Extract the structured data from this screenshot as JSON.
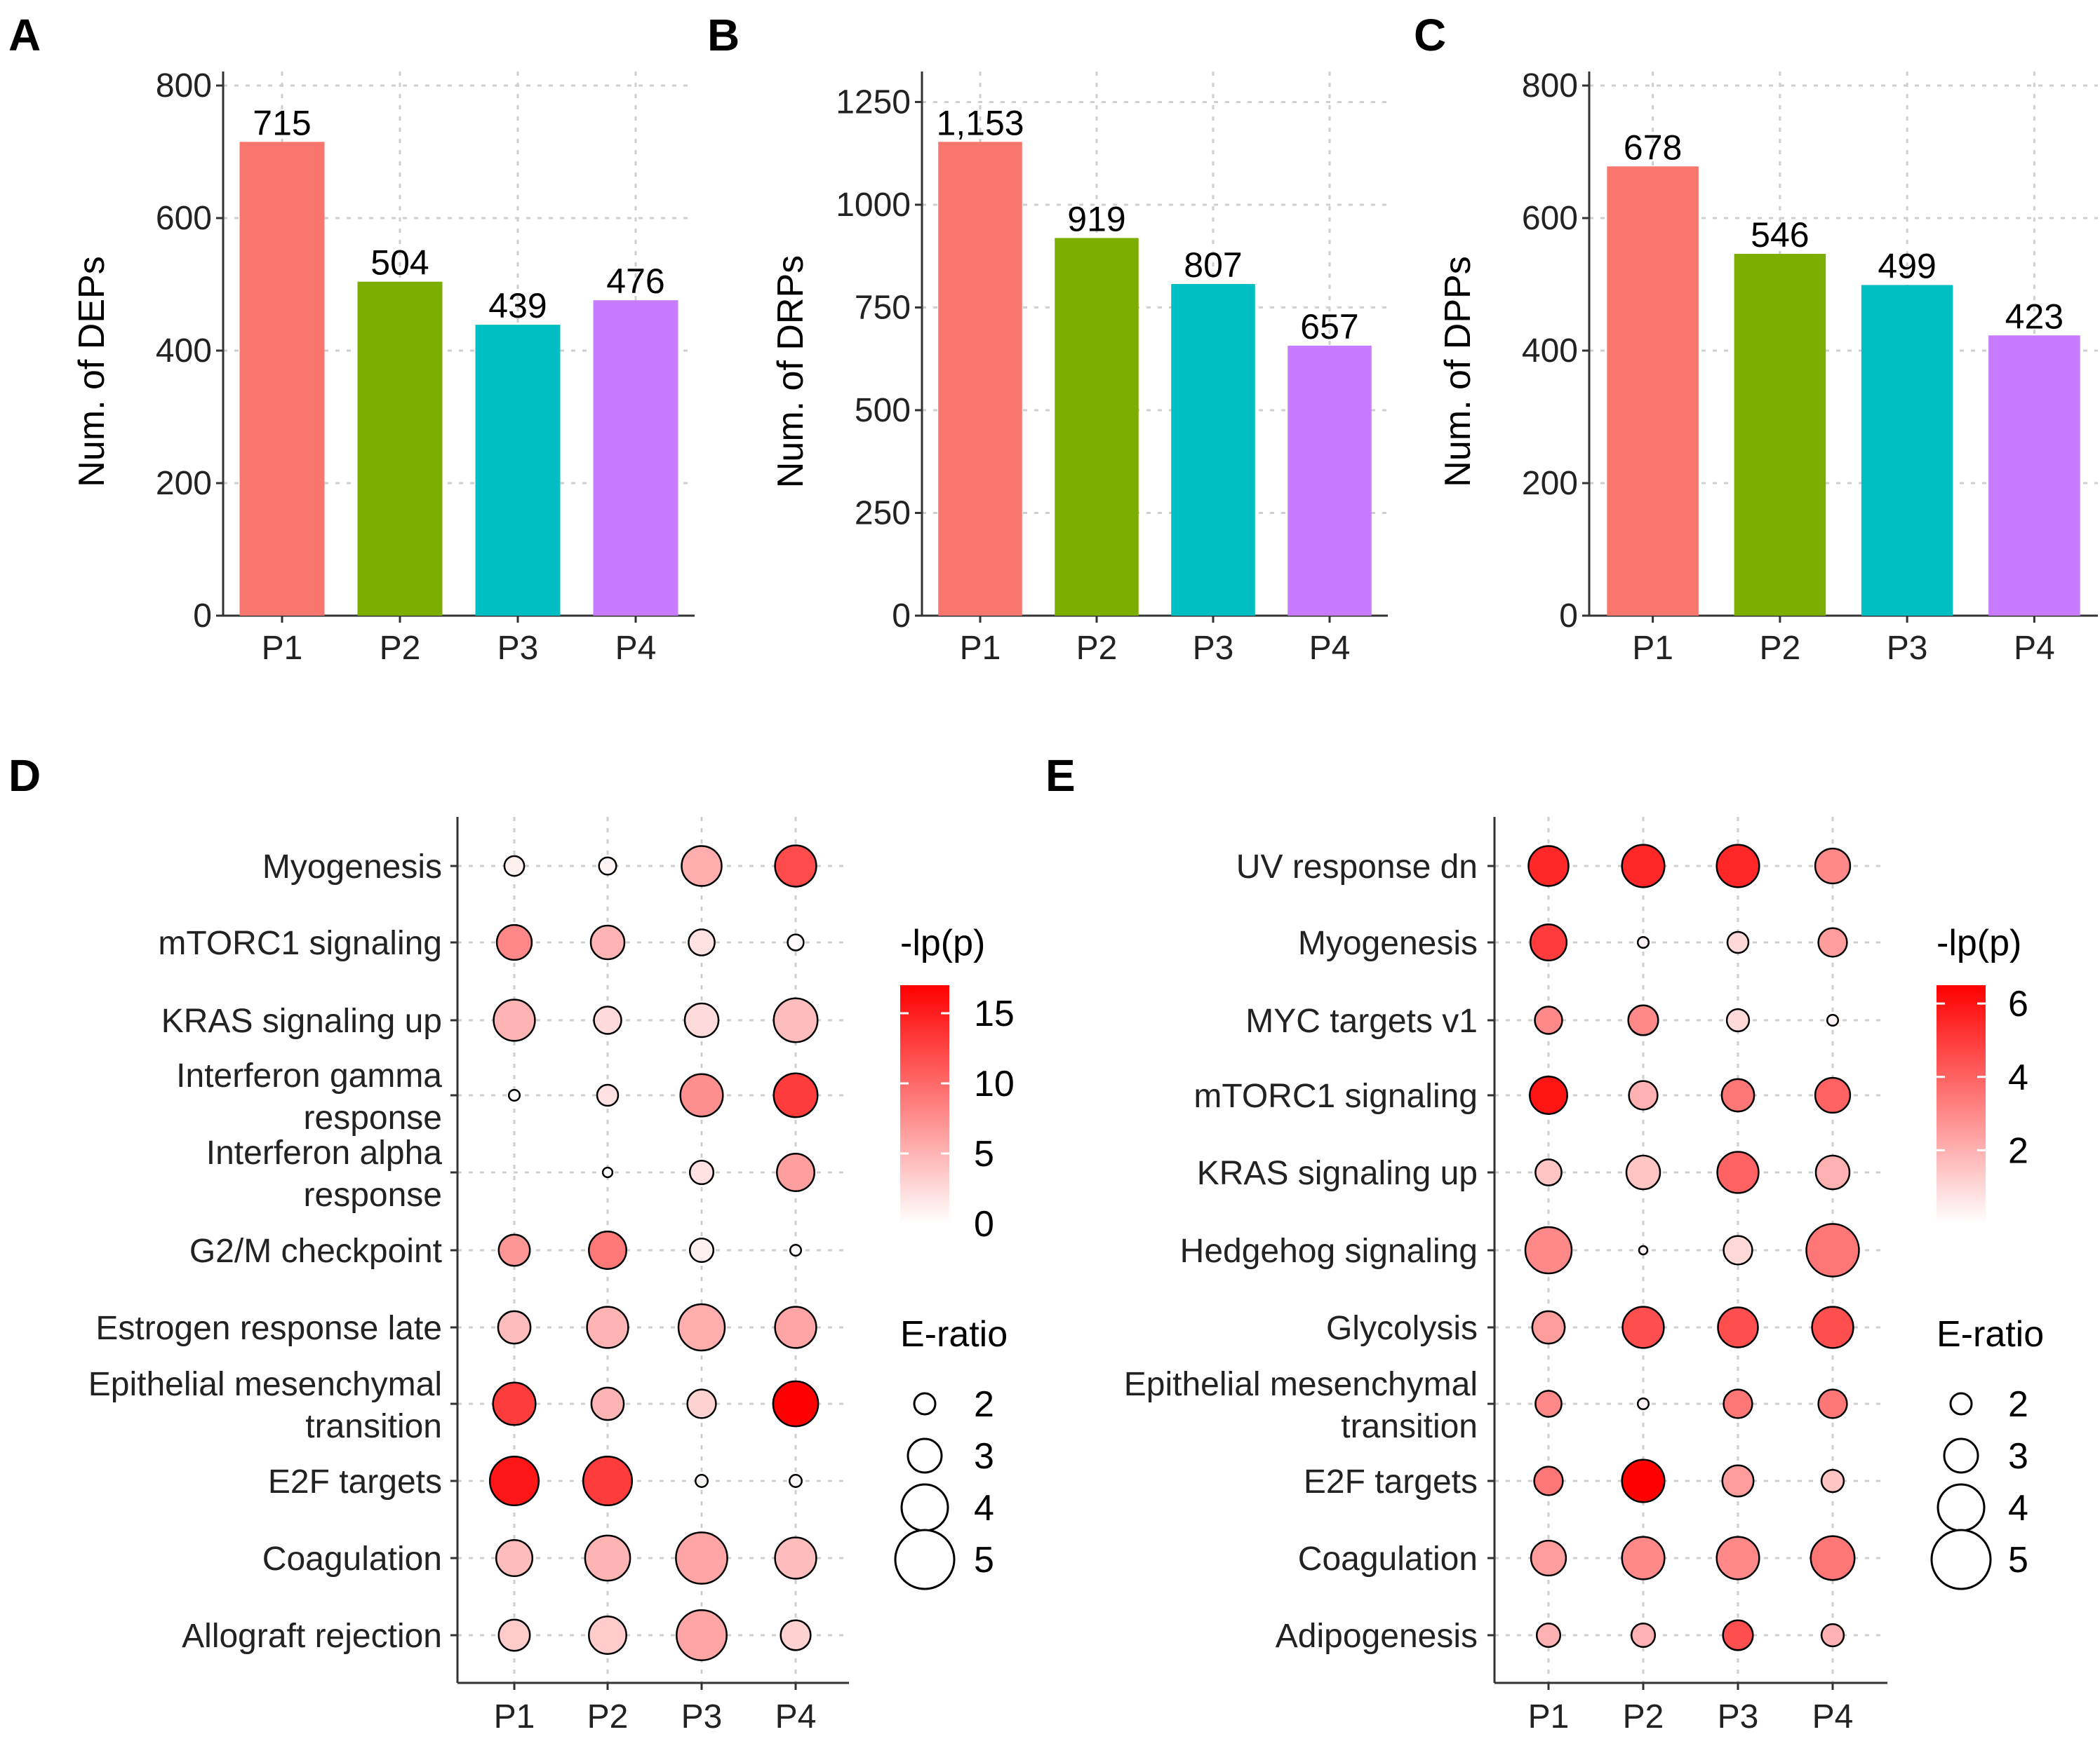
{
  "chart_data": [
    {
      "panel": "A",
      "type": "bar",
      "categories": [
        "P1",
        "P2",
        "P3",
        "P4"
      ],
      "values": [
        715,
        504,
        439,
        476
      ],
      "value_labels": [
        "715",
        "504",
        "439",
        "476"
      ],
      "colors": [
        "#F8766D",
        "#7CAE00",
        "#00BFC4",
        "#C77CFF"
      ],
      "ylabel": "Num. of DEPs",
      "ylim": [
        0,
        800
      ],
      "yticks": [
        0,
        200,
        400,
        600,
        800
      ],
      "ytick_labels": [
        "0",
        "200",
        "400",
        "600",
        "800"
      ]
    },
    {
      "panel": "B",
      "type": "bar",
      "categories": [
        "P1",
        "P2",
        "P3",
        "P4"
      ],
      "values": [
        1153,
        919,
        807,
        657
      ],
      "value_labels": [
        "1,153",
        "919",
        "807",
        "657"
      ],
      "colors": [
        "#F8766D",
        "#7CAE00",
        "#00BFC4",
        "#C77CFF"
      ],
      "ylabel": "Num. of DRPs",
      "ylim": [
        0,
        1290
      ],
      "yticks": [
        0,
        250,
        500,
        750,
        1000,
        1250
      ],
      "ytick_labels": [
        "0",
        "250",
        "500",
        "750",
        "1000",
        "1250"
      ]
    },
    {
      "panel": "C",
      "type": "bar",
      "categories": [
        "P1",
        "P2",
        "P3",
        "P4"
      ],
      "values": [
        678,
        546,
        499,
        423
      ],
      "value_labels": [
        "678",
        "546",
        "499",
        "423"
      ],
      "colors": [
        "#F8766D",
        "#7CAE00",
        "#00BFC4",
        "#C77CFF"
      ],
      "ylabel": "Num. of DPPs",
      "ylim": [
        0,
        800
      ],
      "yticks": [
        0,
        200,
        400,
        600,
        800
      ],
      "ytick_labels": [
        "0",
        "200",
        "400",
        "600",
        "800"
      ]
    },
    {
      "panel": "D",
      "type": "scatter",
      "subtype": "dot-plot",
      "categories": [
        "P1",
        "P2",
        "P3",
        "P4"
      ],
      "pathways": [
        "Myogenesis",
        "mTORC1 signaling",
        "KRAS signaling up",
        "Interferon gamma response",
        "Interferon alpha response",
        "G2/M checkpoint",
        "Estrogen response late",
        "Epithelial mesenchymal transition",
        "E2F targets",
        "Coagulation",
        "Allograft rejection"
      ],
      "pathway_label_lines": [
        [
          "Myogenesis"
        ],
        [
          "mTORC1 signaling"
        ],
        [
          "KRAS signaling up"
        ],
        [
          "Interferon gamma",
          "response"
        ],
        [
          "Interferon alpha",
          "response"
        ],
        [
          "G2/M checkpoint"
        ],
        [
          "Estrogen response late"
        ],
        [
          "Epithelial mesenchymal",
          "transition"
        ],
        [
          "E2F targets"
        ],
        [
          "Coagulation"
        ],
        [
          "Allograft rejection"
        ]
      ],
      "e_ratio": [
        [
          1.9,
          1.7,
          3.5,
          3.6
        ],
        [
          3.1,
          3.0,
          2.4,
          1.6
        ],
        [
          3.6,
          2.5,
          3.0,
          3.8
        ],
        [
          1.2,
          2.0,
          3.7,
          3.8
        ],
        [
          null,
          1.1,
          2.2,
          3.3
        ],
        [
          2.8,
          3.3,
          2.2,
          1.2
        ],
        [
          2.9,
          3.6,
          4.0,
          3.6
        ],
        [
          3.7,
          2.9,
          2.6,
          3.9
        ],
        [
          4.2,
          4.2,
          1.3,
          1.3
        ],
        [
          3.2,
          3.9,
          4.4,
          3.6
        ],
        [
          2.8,
          3.3,
          4.3,
          2.7
        ]
      ],
      "neg_log_p": [
        [
          1.0,
          0.8,
          5.5,
          12.0
        ],
        [
          8.0,
          5.0,
          2.0,
          0.5
        ],
        [
          5.0,
          2.5,
          2.5,
          4.5
        ],
        [
          0.3,
          2.0,
          7.5,
          13.0
        ],
        [
          null,
          0.3,
          2.0,
          6.5
        ],
        [
          7.0,
          9.0,
          1.0,
          0.3
        ],
        [
          4.5,
          5.0,
          5.5,
          6.0
        ],
        [
          13.0,
          5.0,
          3.0,
          17.0
        ],
        [
          15.5,
          13.0,
          0.5,
          0.3
        ],
        [
          4.5,
          5.0,
          6.0,
          4.5
        ],
        [
          3.5,
          3.5,
          6.0,
          3.0
        ]
      ],
      "color_legend": {
        "title": "-lp(p)",
        "ticks": [
          0,
          5,
          10,
          15
        ],
        "tick_labels": [
          "0",
          "5",
          "10",
          "15"
        ],
        "range": [
          0,
          17
        ],
        "low_color": "#FFFFFF",
        "high_color": "#FF0000"
      },
      "size_legend": {
        "title": "E-ratio",
        "values": [
          2,
          3,
          4,
          5
        ],
        "labels": [
          "2",
          "3",
          "4",
          "5"
        ]
      }
    },
    {
      "panel": "E",
      "type": "scatter",
      "subtype": "dot-plot",
      "categories": [
        "P1",
        "P2",
        "P3",
        "P4"
      ],
      "pathways": [
        "UV response dn",
        "Myogenesis",
        "MYC targets v1",
        "mTORC1 signaling",
        "KRAS signaling up",
        "Hedgehog signaling",
        "Glycolysis",
        "Epithelial mesenchymal transition",
        "E2F targets",
        "Coagulation",
        "Adipogenesis"
      ],
      "pathway_label_lines": [
        [
          "UV response dn"
        ],
        [
          "Myogenesis"
        ],
        [
          "MYC targets v1"
        ],
        [
          "mTORC1 signaling"
        ],
        [
          "KRAS signaling up"
        ],
        [
          "Hedgehog signaling"
        ],
        [
          "Glycolysis"
        ],
        [
          "Epithelial mesenchymal",
          "transition"
        ],
        [
          "E2F targets"
        ],
        [
          "Coagulation"
        ],
        [
          "Adipogenesis"
        ]
      ],
      "e_ratio": [
        [
          3.5,
          3.7,
          3.7,
          3.1
        ],
        [
          3.2,
          1.2,
          2.0,
          2.6
        ],
        [
          2.5,
          2.7,
          2.1,
          1.2
        ],
        [
          3.3,
          2.6,
          2.9,
          3.1
        ],
        [
          2.4,
          3.0,
          3.6,
          3.0
        ],
        [
          4.0,
          1.0,
          2.6,
          4.5
        ],
        [
          2.9,
          3.6,
          3.5,
          3.6
        ],
        [
          2.4,
          1.2,
          2.6,
          2.6
        ],
        [
          2.6,
          3.7,
          2.8,
          2.1
        ],
        [
          3.1,
          3.7,
          3.7,
          3.8
        ],
        [
          2.2,
          2.2,
          2.7,
          2.1
        ]
      ],
      "neg_log_p": [
        [
          5.5,
          5.5,
          5.5,
          3.0
        ],
        [
          5.0,
          0.3,
          1.0,
          2.5
        ],
        [
          3.0,
          3.0,
          1.0,
          0.3
        ],
        [
          6.0,
          2.0,
          3.5,
          4.0
        ],
        [
          1.5,
          1.5,
          4.0,
          2.0
        ],
        [
          3.0,
          0.3,
          1.0,
          3.5
        ],
        [
          2.5,
          4.5,
          4.5,
          4.5
        ],
        [
          3.0,
          0.3,
          3.5,
          3.5
        ],
        [
          3.5,
          6.5,
          2.5,
          1.5
        ],
        [
          2.5,
          3.0,
          3.0,
          3.5
        ],
        [
          2.0,
          2.0,
          4.5,
          2.0
        ]
      ],
      "color_legend": {
        "title": "-lp(p)",
        "ticks": [
          2,
          4,
          6
        ],
        "tick_labels": [
          "2",
          "4",
          "6"
        ],
        "range": [
          0,
          6.5
        ],
        "low_color": "#FFFFFF",
        "high_color": "#FF0000"
      },
      "size_legend": {
        "title": "E-ratio",
        "values": [
          2,
          3,
          4,
          5
        ],
        "labels": [
          "2",
          "3",
          "4",
          "5"
        ]
      }
    }
  ]
}
